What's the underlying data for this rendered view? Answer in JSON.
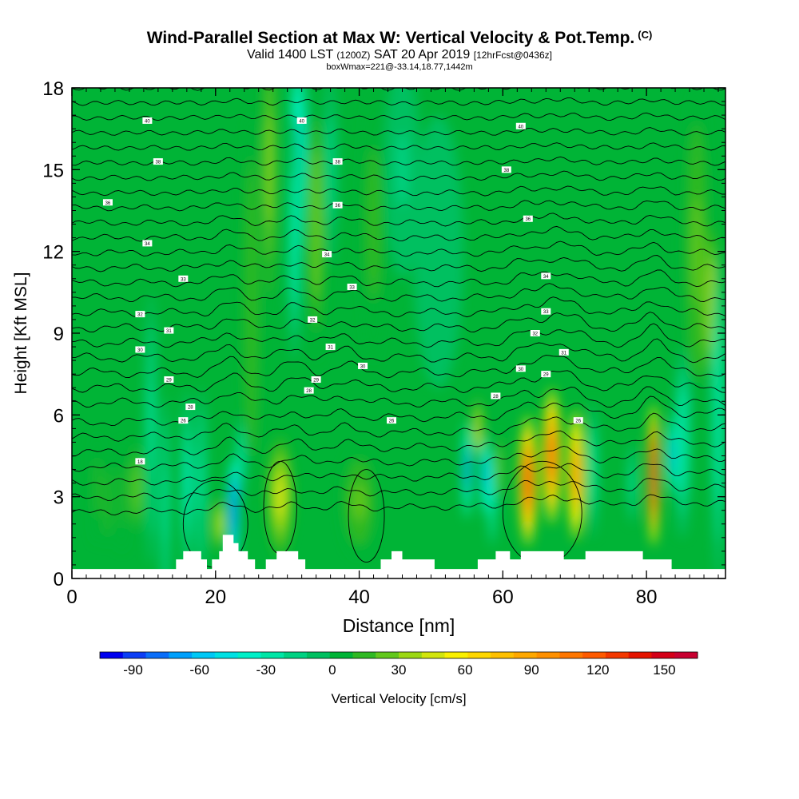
{
  "title": {
    "main": "Wind-Parallel Section at Max W: Vertical Velocity & Pot.Temp.",
    "main_mark": "(C)",
    "valid_prefix": "Valid 1400 LST",
    "valid_z": "(1200Z)",
    "valid_date": "SAT 20 Apr 2019",
    "fcst": "[12hrFcst@0436z]",
    "box": "boxWmax=221@-33.14,18.77,1442m"
  },
  "chart_data": {
    "type": "heatmap",
    "xlabel": "Distance [nm]",
    "ylabel": "Height [Kft MSL]",
    "xlim": [
      0,
      91
    ],
    "ylim": [
      0,
      18
    ],
    "x_ticks": [
      "0",
      "20",
      "40",
      "60",
      "80"
    ],
    "y_ticks": [
      "0",
      "3",
      "6",
      "9",
      "12",
      "15",
      "18"
    ],
    "grid": false,
    "background_value": 5,
    "ground_base_kft": 0.35,
    "terrain": [
      [
        0,
        0.35
      ],
      [
        14.5,
        0.35
      ],
      [
        14.5,
        0.7
      ],
      [
        15.5,
        0.7
      ],
      [
        15.5,
        1.0
      ],
      [
        18,
        1.0
      ],
      [
        18,
        0.7
      ],
      [
        18.8,
        0.7
      ],
      [
        18.8,
        0.35
      ],
      [
        19.5,
        0.35
      ],
      [
        19.5,
        0.7
      ],
      [
        20.5,
        0.7
      ],
      [
        20.5,
        1.0
      ],
      [
        21,
        1.0
      ],
      [
        21,
        1.6
      ],
      [
        22.5,
        1.6
      ],
      [
        22.5,
        1.3
      ],
      [
        23.2,
        1.3
      ],
      [
        23.2,
        1.0
      ],
      [
        24.5,
        1.0
      ],
      [
        24.5,
        0.7
      ],
      [
        25.5,
        0.7
      ],
      [
        25.5,
        0.35
      ],
      [
        27,
        0.35
      ],
      [
        27,
        0.7
      ],
      [
        28.5,
        0.7
      ],
      [
        28.5,
        1.0
      ],
      [
        31.5,
        1.0
      ],
      [
        31.5,
        0.7
      ],
      [
        32.5,
        0.7
      ],
      [
        32.5,
        0.35
      ],
      [
        43,
        0.35
      ],
      [
        43,
        0.7
      ],
      [
        44.5,
        0.7
      ],
      [
        44.5,
        1.0
      ],
      [
        46,
        1.0
      ],
      [
        46,
        0.7
      ],
      [
        50.5,
        0.7
      ],
      [
        50.5,
        0.35
      ],
      [
        56.5,
        0.35
      ],
      [
        56.5,
        0.7
      ],
      [
        59,
        0.7
      ],
      [
        59,
        1.0
      ],
      [
        61,
        1.0
      ],
      [
        61,
        0.7
      ],
      [
        62.5,
        0.7
      ],
      [
        62.5,
        1.0
      ],
      [
        68.5,
        1.0
      ],
      [
        68.5,
        0.7
      ],
      [
        71.5,
        0.7
      ],
      [
        71.5,
        1.0
      ],
      [
        79.5,
        1.0
      ],
      [
        79.5,
        0.7
      ],
      [
        83.5,
        0.7
      ],
      [
        83.5,
        0.35
      ],
      [
        91,
        0.35
      ]
    ],
    "vertical_velocity_features": [
      {
        "x": 3.5,
        "y": 3.3,
        "w": 0.6,
        "h": 2.0,
        "value": 12
      },
      {
        "x": 5,
        "y": 2.8,
        "w": 0.5,
        "h": 1.6,
        "value": 18
      },
      {
        "x": 7,
        "y": 3.0,
        "w": 0.6,
        "h": 2.0,
        "value": 12
      },
      {
        "x": 9,
        "y": 3.3,
        "w": 0.5,
        "h": 1.6,
        "value": 40
      },
      {
        "x": 11,
        "y": 5.5,
        "w": 0.8,
        "h": 5.0,
        "value": -25
      },
      {
        "x": 13,
        "y": 2.7,
        "w": 0.7,
        "h": 4.0,
        "value": -25
      },
      {
        "x": 16,
        "y": 3.5,
        "w": 0.8,
        "h": 3.5,
        "value": -35
      },
      {
        "x": 18,
        "y": 3.5,
        "w": 0.8,
        "h": 3.5,
        "value": -25
      },
      {
        "x": 20.5,
        "y": 2.0,
        "w": 0.6,
        "h": 1.0,
        "value": 60
      },
      {
        "x": 22.5,
        "y": 2.5,
        "w": 0.8,
        "h": 2.0,
        "value": -80
      },
      {
        "x": 23.5,
        "y": 4.5,
        "w": 0.6,
        "h": 1.5,
        "value": -30
      },
      {
        "x": 25,
        "y": 10,
        "w": 1.2,
        "h": 7.0,
        "value": 18
      },
      {
        "x": 27.5,
        "y": 15,
        "w": 1.0,
        "h": 6.0,
        "value": 30
      },
      {
        "x": 29,
        "y": 3.0,
        "w": 1.8,
        "h": 2.2,
        "value": 48
      },
      {
        "x": 31.5,
        "y": 15.5,
        "w": 1.3,
        "h": 4.0,
        "value": -45
      },
      {
        "x": 31,
        "y": 12.5,
        "w": 1.0,
        "h": 4.5,
        "value": -30
      },
      {
        "x": 34,
        "y": 13,
        "w": 1.3,
        "h": 5.0,
        "value": 28
      },
      {
        "x": 36,
        "y": 15,
        "w": 1.0,
        "h": 3.5,
        "value": -15
      },
      {
        "x": 40,
        "y": 2.8,
        "w": 2.5,
        "h": 2.0,
        "value": 22
      },
      {
        "x": 42,
        "y": 13,
        "w": 1.8,
        "h": 5.0,
        "value": 12
      },
      {
        "x": 46,
        "y": 15,
        "w": 2.5,
        "h": 4.0,
        "value": -12
      },
      {
        "x": 51,
        "y": 12,
        "w": 3.5,
        "h": 5.0,
        "value": -10
      },
      {
        "x": 55,
        "y": 4.0,
        "w": 0.6,
        "h": 1.8,
        "value": -75
      },
      {
        "x": 56.5,
        "y": 5.5,
        "w": 0.5,
        "h": 1.2,
        "value": 65
      },
      {
        "x": 57.5,
        "y": 3.8,
        "w": 0.6,
        "h": 1.6,
        "value": -65
      },
      {
        "x": 58.5,
        "y": 3.0,
        "w": 0.5,
        "h": 1.8,
        "value": -40
      },
      {
        "x": 59.5,
        "y": 4.0,
        "w": 0.6,
        "h": 1.5,
        "value": 25
      },
      {
        "x": 63.5,
        "y": 3.6,
        "w": 1.3,
        "h": 2.4,
        "value": 125
      },
      {
        "x": 66.8,
        "y": 4.5,
        "w": 1.3,
        "h": 2.5,
        "value": 115
      },
      {
        "x": 70.2,
        "y": 3.8,
        "w": 1.2,
        "h": 2.4,
        "value": 100
      },
      {
        "x": 72.5,
        "y": 4.0,
        "w": 0.7,
        "h": 2.5,
        "value": -30
      },
      {
        "x": 78,
        "y": 3.5,
        "w": 0.6,
        "h": 1.5,
        "value": -25
      },
      {
        "x": 81,
        "y": 3.8,
        "w": 0.8,
        "h": 2.6,
        "value": 160
      },
      {
        "x": 83.5,
        "y": 4.5,
        "w": 0.7,
        "h": 1.5,
        "value": -55
      },
      {
        "x": 85,
        "y": 5.0,
        "w": 1.2,
        "h": 3.5,
        "value": -30
      },
      {
        "x": 87,
        "y": 12,
        "w": 1.8,
        "h": 6.0,
        "value": 22
      },
      {
        "x": 89,
        "y": 10,
        "w": 1.0,
        "h": 3.0,
        "value": 40
      },
      {
        "x": 90,
        "y": 6.0,
        "w": 1.0,
        "h": 6.0,
        "value": -30
      }
    ],
    "contour_label_points": [
      {
        "x": 10.5,
        "y": 16.8,
        "t": "40"
      },
      {
        "x": 32,
        "y": 16.8,
        "t": "40"
      },
      {
        "x": 62.5,
        "y": 16.6,
        "t": "40"
      },
      {
        "x": 12,
        "y": 15.3,
        "t": "38"
      },
      {
        "x": 37,
        "y": 15.3,
        "t": "38"
      },
      {
        "x": 60.5,
        "y": 15.0,
        "t": "38"
      },
      {
        "x": 5,
        "y": 13.8,
        "t": "36"
      },
      {
        "x": 37,
        "y": 13.7,
        "t": "36"
      },
      {
        "x": 63.5,
        "y": 13.2,
        "t": "36"
      },
      {
        "x": 10.5,
        "y": 12.3,
        "t": "34"
      },
      {
        "x": 35.5,
        "y": 11.9,
        "t": "34"
      },
      {
        "x": 66,
        "y": 11.1,
        "t": "34"
      },
      {
        "x": 15.5,
        "y": 11.0,
        "t": "33"
      },
      {
        "x": 39,
        "y": 10.7,
        "t": "33"
      },
      {
        "x": 66,
        "y": 9.8,
        "t": "33"
      },
      {
        "x": 9.5,
        "y": 9.7,
        "t": "32"
      },
      {
        "x": 33.5,
        "y": 9.5,
        "t": "32"
      },
      {
        "x": 64.5,
        "y": 9.0,
        "t": "32"
      },
      {
        "x": 13.5,
        "y": 9.1,
        "t": "31"
      },
      {
        "x": 36,
        "y": 8.5,
        "t": "31"
      },
      {
        "x": 68.5,
        "y": 8.3,
        "t": "31"
      },
      {
        "x": 9.5,
        "y": 8.4,
        "t": "30"
      },
      {
        "x": 40.5,
        "y": 7.8,
        "t": "30"
      },
      {
        "x": 62.5,
        "y": 7.7,
        "t": "30"
      },
      {
        "x": 13.5,
        "y": 7.3,
        "t": "29"
      },
      {
        "x": 34,
        "y": 7.3,
        "t": "29"
      },
      {
        "x": 66,
        "y": 7.5,
        "t": "29"
      },
      {
        "x": 16.5,
        "y": 6.3,
        "t": "28"
      },
      {
        "x": 33,
        "y": 6.9,
        "t": "28"
      },
      {
        "x": 59,
        "y": 6.7,
        "t": "28"
      },
      {
        "x": 15.5,
        "y": 5.8,
        "t": "26"
      },
      {
        "x": 44.5,
        "y": 5.8,
        "t": "26"
      },
      {
        "x": 70.5,
        "y": 5.8,
        "t": "26"
      },
      {
        "x": 9.5,
        "y": 4.3,
        "t": "18"
      }
    ]
  },
  "colorbar": {
    "label": "Vertical Velocity [cm/s]",
    "tick_labels": [
      "-90",
      "-60",
      "-30",
      "0",
      "30",
      "60",
      "90",
      "120",
      "150"
    ],
    "tick_values": [
      -90,
      -60,
      -30,
      0,
      30,
      60,
      90,
      120,
      150
    ],
    "range": [
      -105,
      165
    ],
    "colors": [
      "#0000f0",
      "#0c3ef5",
      "#0a6ef9",
      "#00a0fc",
      "#00c8f6",
      "#00e1e4",
      "#00f0c8",
      "#00e6a6",
      "#00d282",
      "#00c060",
      "#00b436",
      "#2fb923",
      "#62c81c",
      "#9cd814",
      "#d2e50c",
      "#faf000",
      "#ffd700",
      "#ffc000",
      "#ffa800",
      "#ff9000",
      "#ff7600",
      "#fe5a00",
      "#f33800",
      "#e51400",
      "#d40018",
      "#c80030"
    ]
  }
}
